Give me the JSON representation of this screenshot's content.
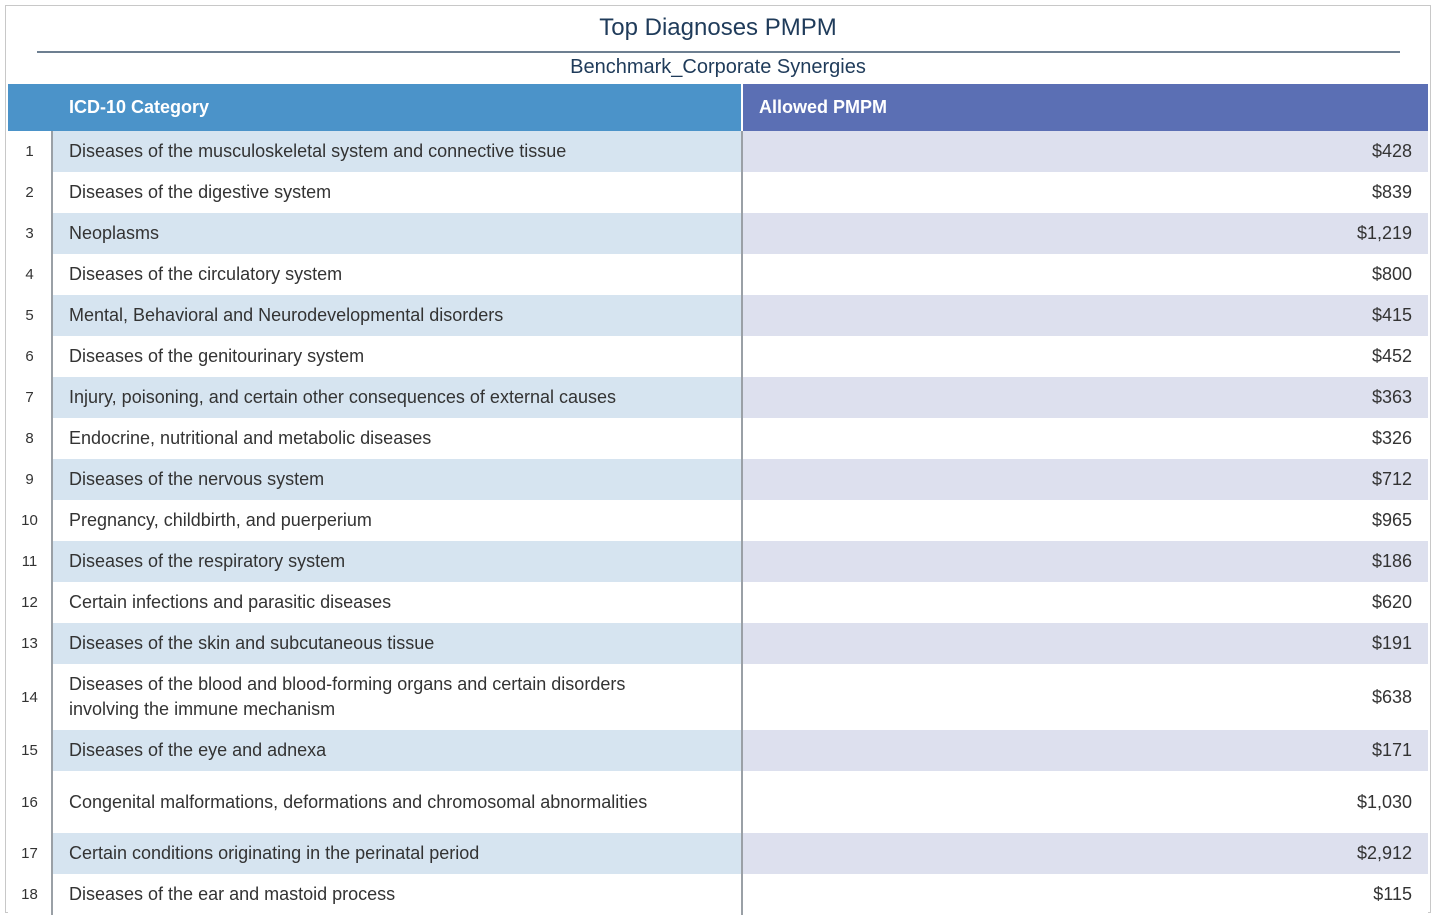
{
  "chart_data": {
    "type": "table",
    "title": "Top Diagnoses PMPM",
    "subtitle": "Benchmark_Corporate Synergies",
    "columns": [
      "ICD-10 Category",
      "Allowed PMPM"
    ],
    "rows": [
      {
        "rank": "1",
        "category": "Diseases of the musculoskeletal system and connective tissue",
        "value": "$428"
      },
      {
        "rank": "2",
        "category": "Diseases of the digestive system",
        "value": "$839"
      },
      {
        "rank": "3",
        "category": "Neoplasms",
        "value": "$1,219"
      },
      {
        "rank": "4",
        "category": "Diseases of the circulatory system",
        "value": "$800"
      },
      {
        "rank": "5",
        "category": "Mental, Behavioral and Neurodevelopmental disorders",
        "value": "$415"
      },
      {
        "rank": "6",
        "category": "Diseases of the genitourinary system",
        "value": "$452"
      },
      {
        "rank": "7",
        "category": "Injury, poisoning, and certain other consequences of external causes",
        "value": "$363"
      },
      {
        "rank": "8",
        "category": "Endocrine, nutritional and metabolic diseases",
        "value": "$326"
      },
      {
        "rank": "9",
        "category": "Diseases of the nervous system",
        "value": "$712"
      },
      {
        "rank": "10",
        "category": "Pregnancy, childbirth, and puerperium",
        "value": "$965"
      },
      {
        "rank": "11",
        "category": "Diseases of the respiratory system",
        "value": "$186"
      },
      {
        "rank": "12",
        "category": "Certain infections and parasitic diseases",
        "value": "$620"
      },
      {
        "rank": "13",
        "category": "Diseases of the skin and subcutaneous tissue",
        "value": "$191"
      },
      {
        "rank": "14",
        "category": "Diseases of the blood and blood-forming organs and certain disorders involving the immune mechanism",
        "value": "$638"
      },
      {
        "rank": "15",
        "category": "Diseases of the eye and adnexa",
        "value": "$171"
      },
      {
        "rank": "16",
        "category": "Congenital malformations, deformations and chromosomal abnormalities",
        "value": "$1,030"
      },
      {
        "rank": "17",
        "category": "Certain conditions originating in the perinatal period",
        "value": "$2,912"
      },
      {
        "rank": "18",
        "category": "Diseases of the ear and mastoid process",
        "value": "$115"
      }
    ]
  },
  "colors": {
    "header_category": "#4b93c9",
    "header_value": "#5b6fb4",
    "stripe_category": "#d6e4f0",
    "stripe_value": "#dde0ee",
    "title": "#1f3b5a"
  }
}
